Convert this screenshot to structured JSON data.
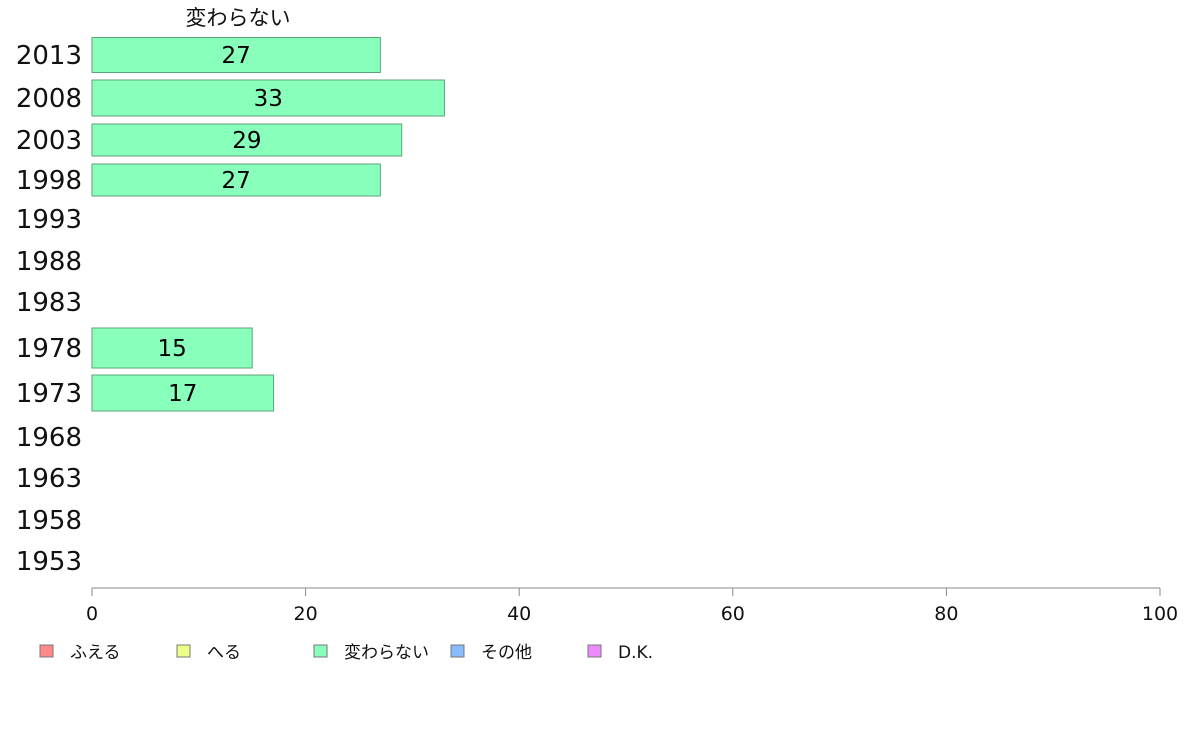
{
  "chart_data": {
    "type": "bar",
    "orientation": "horizontal",
    "title": "変わらない",
    "categories": [
      "2013",
      "2008",
      "2003",
      "1998",
      "1993",
      "1988",
      "1983",
      "1978",
      "1973",
      "1968",
      "1963",
      "1958",
      "1953"
    ],
    "series": [
      {
        "name": "変わらない",
        "color": "#88ffbb",
        "values": [
          27,
          33,
          29,
          27,
          null,
          null,
          null,
          15,
          17,
          null,
          null,
          null,
          null
        ],
        "value_labels": [
          "27",
          "33",
          "29",
          "27",
          "",
          "",
          "",
          "15",
          "17",
          "",
          "",
          "",
          ""
        ]
      }
    ],
    "xlim": [
      0,
      100
    ],
    "xticks": [
      0,
      20,
      40,
      60,
      80,
      100
    ],
    "xtick_labels": [
      "0",
      "20",
      "40",
      "60",
      "80",
      "100"
    ],
    "grid": false,
    "legend": {
      "placement": "bottom-left",
      "items": [
        {
          "label": "ふえる",
          "color": "#ff8888"
        },
        {
          "label": "へる",
          "color": "#eeff88"
        },
        {
          "label": "変わらない",
          "color": "#88ffbb"
        },
        {
          "label": "その他",
          "color": "#88bbff"
        },
        {
          "label": "D.K.",
          "color": "#ee88ff"
        }
      ]
    }
  }
}
